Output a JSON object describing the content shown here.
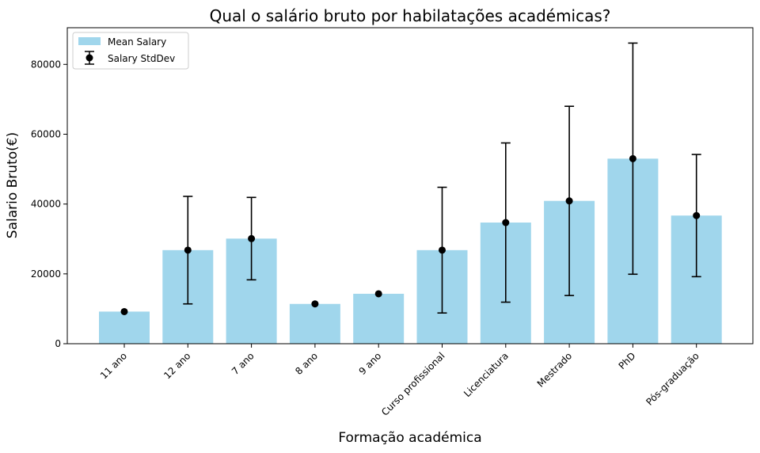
{
  "chart_data": {
    "type": "bar",
    "title": "Qual o salário bruto por habilatações académicas?",
    "xlabel": "Formação académica",
    "ylabel": "Salario Bruto(€)",
    "categories": [
      "11 ano",
      "12 ano",
      "7 ano",
      "8 ano",
      "9 ano",
      "Curso profissional",
      "Licenciatura",
      "Mestrado",
      "PhD",
      "Pós-graduação"
    ],
    "series": [
      {
        "name": "Mean Salary",
        "values": [
          9200,
          26800,
          30100,
          11400,
          14300,
          26800,
          34700,
          40900,
          53000,
          36700
        ]
      },
      {
        "name": "Salary StdDev",
        "values": [
          0,
          15400,
          11800,
          0,
          0,
          18000,
          22800,
          27100,
          33100,
          17500
        ]
      }
    ],
    "yticks": [
      0,
      20000,
      40000,
      60000,
      80000
    ],
    "ylim": [
      0,
      90500
    ],
    "legend_position": "top-left",
    "colors": {
      "bar": "#a0d6ec",
      "error": "#000000"
    }
  }
}
